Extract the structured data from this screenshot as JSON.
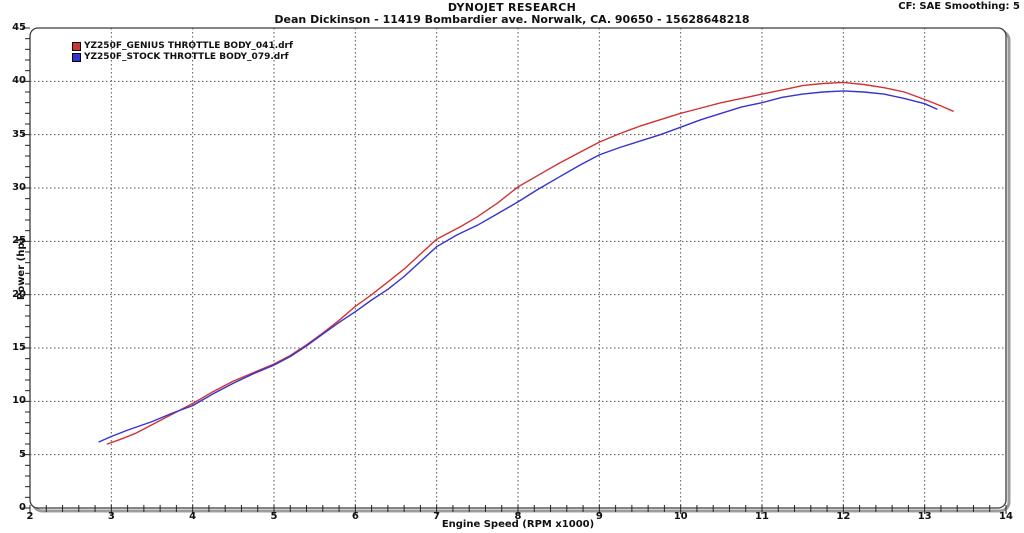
{
  "header": {
    "title": "DYNOJET RESEARCH",
    "subtitle": "Dean Dickinson - 11419 Bombardier ave. Norwalk, CA. 90650 - 15628648218",
    "correction_info": "CF: SAE  Smoothing: 5"
  },
  "chart_data": {
    "type": "line",
    "title": "",
    "xlabel": "Engine Speed (RPM x1000)",
    "ylabel": "Power (hp)",
    "xlim": [
      2,
      14
    ],
    "ylim": [
      0,
      45
    ],
    "x_ticks": [
      2,
      3,
      4,
      5,
      6,
      7,
      8,
      9,
      10,
      11,
      12,
      13,
      14
    ],
    "y_ticks": [
      0,
      5,
      10,
      15,
      20,
      25,
      30,
      35,
      40,
      45
    ],
    "x_minor_step": 0.2,
    "y_minor_step": 1,
    "grid": "dotted lines at every major tick",
    "legend_position": "top-left inside plot",
    "plot_border_color": "#3b3b3b",
    "plot_shadow_color": "#9c9c9c",
    "grid_color": "#555555",
    "series": [
      {
        "name": "YZ250F_GENIUS THROTTLE BODY_041.drf",
        "color": "#cf3434",
        "points": [
          [
            2.95,
            6.0
          ],
          [
            3.1,
            6.4
          ],
          [
            3.3,
            7.0
          ],
          [
            3.5,
            7.8
          ],
          [
            3.75,
            8.8
          ],
          [
            4.0,
            9.8
          ],
          [
            4.25,
            10.9
          ],
          [
            4.5,
            11.9
          ],
          [
            4.75,
            12.7
          ],
          [
            5.0,
            13.5
          ],
          [
            5.2,
            14.3
          ],
          [
            5.4,
            15.3
          ],
          [
            5.6,
            16.4
          ],
          [
            5.8,
            17.6
          ],
          [
            6.0,
            18.9
          ],
          [
            6.2,
            20.0
          ],
          [
            6.4,
            21.2
          ],
          [
            6.6,
            22.4
          ],
          [
            6.8,
            23.8
          ],
          [
            7.0,
            25.2
          ],
          [
            7.15,
            25.8
          ],
          [
            7.3,
            26.4
          ],
          [
            7.5,
            27.3
          ],
          [
            7.75,
            28.6
          ],
          [
            8.0,
            30.1
          ],
          [
            8.25,
            31.2
          ],
          [
            8.5,
            32.3
          ],
          [
            8.75,
            33.3
          ],
          [
            9.0,
            34.3
          ],
          [
            9.25,
            35.1
          ],
          [
            9.5,
            35.8
          ],
          [
            9.75,
            36.4
          ],
          [
            10.0,
            37.0
          ],
          [
            10.25,
            37.5
          ],
          [
            10.5,
            38.0
          ],
          [
            10.75,
            38.4
          ],
          [
            11.0,
            38.8
          ],
          [
            11.25,
            39.2
          ],
          [
            11.5,
            39.6
          ],
          [
            11.75,
            39.8
          ],
          [
            12.0,
            39.9
          ],
          [
            12.25,
            39.7
          ],
          [
            12.5,
            39.4
          ],
          [
            12.75,
            39.0
          ],
          [
            13.0,
            38.3
          ],
          [
            13.2,
            37.7
          ],
          [
            13.35,
            37.2
          ]
        ]
      },
      {
        "name": "YZ250F_STOCK THROTTLE BODY_079.drf",
        "color": "#3434cf",
        "points": [
          [
            2.85,
            6.2
          ],
          [
            3.0,
            6.7
          ],
          [
            3.2,
            7.3
          ],
          [
            3.5,
            8.1
          ],
          [
            3.75,
            8.9
          ],
          [
            4.0,
            9.6
          ],
          [
            4.25,
            10.7
          ],
          [
            4.5,
            11.7
          ],
          [
            4.75,
            12.6
          ],
          [
            5.0,
            13.4
          ],
          [
            5.2,
            14.2
          ],
          [
            5.4,
            15.2
          ],
          [
            5.6,
            16.3
          ],
          [
            5.8,
            17.4
          ],
          [
            6.0,
            18.4
          ],
          [
            6.2,
            19.5
          ],
          [
            6.4,
            20.5
          ],
          [
            6.6,
            21.7
          ],
          [
            6.8,
            23.1
          ],
          [
            7.0,
            24.5
          ],
          [
            7.25,
            25.6
          ],
          [
            7.5,
            26.5
          ],
          [
            7.75,
            27.6
          ],
          [
            8.0,
            28.7
          ],
          [
            8.25,
            29.9
          ],
          [
            8.5,
            31.0
          ],
          [
            8.75,
            32.1
          ],
          [
            9.0,
            33.1
          ],
          [
            9.25,
            33.8
          ],
          [
            9.5,
            34.4
          ],
          [
            9.75,
            35.0
          ],
          [
            10.0,
            35.7
          ],
          [
            10.25,
            36.4
          ],
          [
            10.5,
            37.0
          ],
          [
            10.75,
            37.6
          ],
          [
            11.0,
            38.0
          ],
          [
            11.25,
            38.5
          ],
          [
            11.5,
            38.8
          ],
          [
            11.75,
            39.0
          ],
          [
            12.0,
            39.1
          ],
          [
            12.25,
            39.0
          ],
          [
            12.5,
            38.8
          ],
          [
            12.75,
            38.4
          ],
          [
            13.0,
            37.9
          ],
          [
            13.15,
            37.4
          ]
        ]
      }
    ]
  }
}
